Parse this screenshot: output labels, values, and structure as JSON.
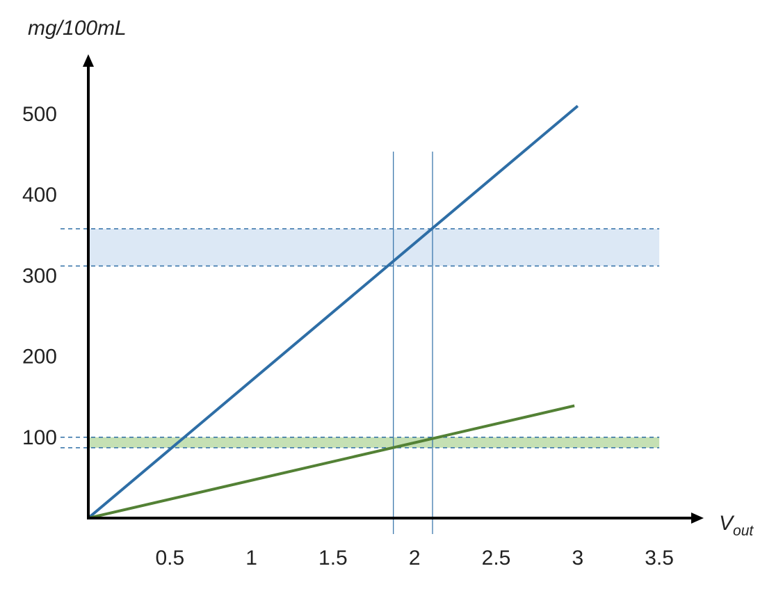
{
  "chart_data": {
    "type": "line",
    "title": "",
    "ylabel": "mg/100mL",
    "xlabel": {
      "main": "V",
      "subscript": "out"
    },
    "xlim": [
      0,
      3.5
    ],
    "ylim": [
      0,
      500
    ],
    "x_ticks": [
      "0.5",
      "1",
      "1.5",
      "2",
      "2.5",
      "3",
      "3.5"
    ],
    "y_ticks": [
      "100",
      "200",
      "300",
      "400",
      "500"
    ],
    "grid": false,
    "legend": "none",
    "series": [
      {
        "color": "#2e6ea6",
        "x": [
          0,
          3.0
        ],
        "y": [
          0,
          510
        ]
      },
      {
        "color": "#538135",
        "x": [
          0,
          2.98
        ],
        "y": [
          0,
          139
        ]
      }
    ],
    "bands": [
      {
        "y_range": [
          312,
          358
        ],
        "x_range": [
          0,
          3.5
        ],
        "fill": "#dce8f5",
        "edge_color": "#2e6ea6"
      },
      {
        "y_range": [
          87,
          100
        ],
        "x_range": [
          0,
          3.5
        ],
        "fill": "#c5e0b4",
        "edge_color": "#2e6ea6"
      }
    ],
    "vertical_lines": [
      {
        "x": 1.87,
        "color": "#2e6ea6"
      },
      {
        "x": 2.11,
        "color": "#2e6ea6"
      }
    ]
  }
}
